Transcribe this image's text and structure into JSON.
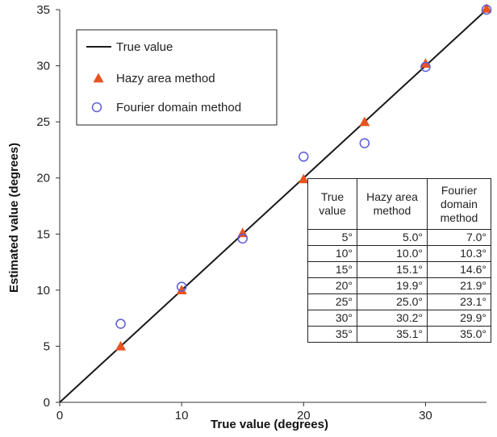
{
  "chart_data": {
    "type": "scatter",
    "xlabel": "True value (degrees)",
    "ylabel": "Estimated value (degrees)",
    "xlim": [
      0,
      35
    ],
    "ylim": [
      0,
      35
    ],
    "x_ticks": [
      0,
      10,
      20,
      30
    ],
    "y_ticks": [
      0,
      5,
      10,
      15,
      20,
      25,
      30,
      35
    ],
    "grid": false,
    "legend_position": "top-left",
    "series": [
      {
        "name": "True value",
        "kind": "line",
        "color": "#1a1a1a",
        "x": [
          0,
          35
        ],
        "y": [
          0,
          35
        ]
      },
      {
        "name": "Hazy area method",
        "kind": "marker",
        "marker": "triangle",
        "color": "#e8531f",
        "x": [
          5,
          10,
          15,
          20,
          25,
          30,
          35
        ],
        "y": [
          5.0,
          10.0,
          15.1,
          19.9,
          25.0,
          30.2,
          35.1
        ]
      },
      {
        "name": "Fourier domain method",
        "kind": "marker",
        "marker": "open-circle",
        "color": "#5b5bd6",
        "x": [
          5,
          10,
          15,
          20,
          25,
          30,
          35
        ],
        "y": [
          7.0,
          10.3,
          14.6,
          21.9,
          23.1,
          29.9,
          35.0
        ]
      }
    ]
  },
  "table": {
    "headers": [
      "True value",
      "Hazy area method",
      "Fourier domain method"
    ],
    "rows": [
      [
        "5°",
        "5.0°",
        "7.0°"
      ],
      [
        "10°",
        "10.0°",
        "10.3°"
      ],
      [
        "15°",
        "15.1°",
        "14.6°"
      ],
      [
        "20°",
        "19.9°",
        "21.9°"
      ],
      [
        "25°",
        "25.0°",
        "23.1°"
      ],
      [
        "30°",
        "30.2°",
        "29.9°"
      ],
      [
        "35°",
        "35.1°",
        "35.0°"
      ]
    ]
  }
}
